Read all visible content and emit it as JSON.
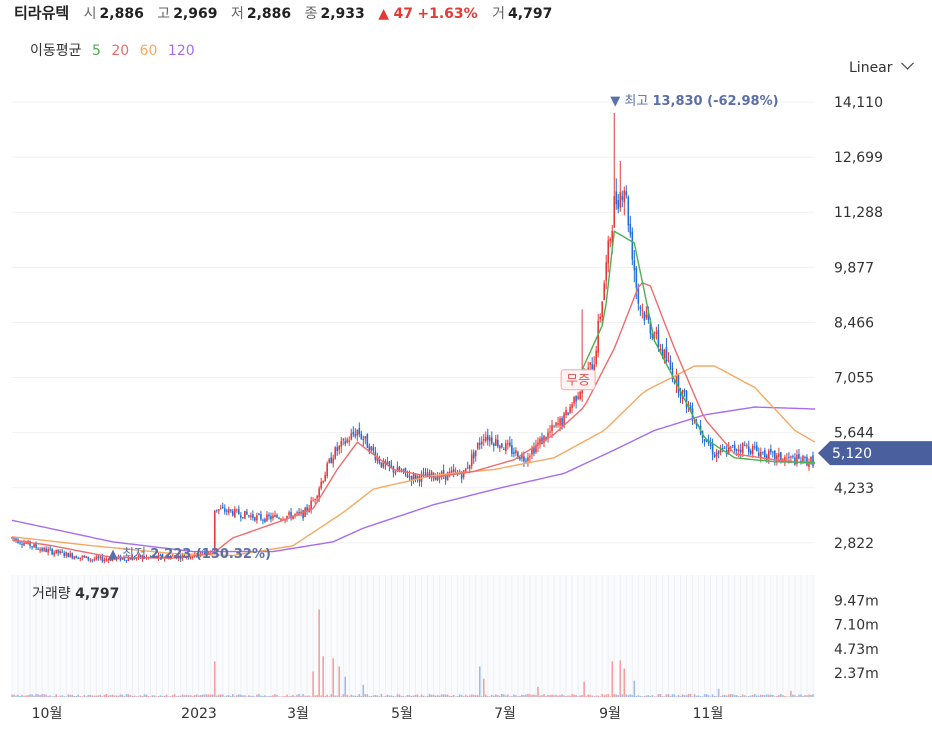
{
  "header": {
    "name": "티라유텍",
    "open_label": "시",
    "open": "2,886",
    "high_label": "고",
    "high": "2,969",
    "low_label": "저",
    "low": "2,886",
    "close_label": "종",
    "close": "2,933",
    "change": "47",
    "change_pct": "+1.63%",
    "volume_label": "거",
    "volume": "4,797"
  },
  "ma": {
    "label": "이동평균",
    "p5": "5",
    "p20": "20",
    "p60": "60",
    "p120": "120"
  },
  "scale_label": "Linear",
  "colors": {
    "up": "#e53935",
    "down": "#1e6fd9",
    "ma5": "#4caf50",
    "ma20": "#f06b6b",
    "ma60": "#f5a962",
    "ma120": "#a66cf0",
    "annotation": "#5b6fa8",
    "price_badge": "#4a5f9e"
  },
  "chart_data": {
    "type": "candlestick",
    "series_note": "",
    "price_axis": {
      "min": 2000,
      "max": 14800,
      "ticks": [
        "14,110",
        "12,699",
        "11,288",
        "9,877",
        "8,466",
        "7,055",
        "5,644",
        "4,233",
        "2,822"
      ]
    },
    "time_axis": {
      "ticks": [
        "10월",
        "2023",
        "3월",
        "5월",
        "7월",
        "9월",
        "11월"
      ]
    },
    "current_price": "5,120",
    "high_annotation": {
      "label": "최고",
      "value": "13,830",
      "pct": "(-62.98%)"
    },
    "low_annotation": {
      "label": "최저",
      "value": "2,223",
      "pct": "(130.32%)"
    },
    "event_annotation": "무증",
    "volume_label": "거래량",
    "volume_value": "4,797",
    "volume_axis": {
      "ticks": [
        "9.47m",
        "7.10m",
        "4.73m",
        "2.37m"
      ]
    },
    "anchors": [
      [
        0,
        2950
      ],
      [
        15,
        2650
      ],
      [
        40,
        2400
      ],
      [
        70,
        2450
      ],
      [
        90,
        2500
      ],
      [
        100,
        2600
      ],
      [
        101,
        3700
      ],
      [
        125,
        3450
      ],
      [
        145,
        3550
      ],
      [
        150,
        3900
      ],
      [
        160,
        5100
      ],
      [
        172,
        5700
      ],
      [
        185,
        4800
      ],
      [
        200,
        4500
      ],
      [
        225,
        4600
      ],
      [
        235,
        5600
      ],
      [
        255,
        5000
      ],
      [
        275,
        6000
      ],
      [
        290,
        7500
      ],
      [
        300,
        11500
      ],
      [
        305,
        12000
      ],
      [
        312,
        9000
      ],
      [
        325,
        7600
      ],
      [
        340,
        6000
      ],
      [
        350,
        5100
      ],
      [
        365,
        5300
      ],
      [
        380,
        5000
      ],
      [
        400,
        4900
      ]
    ],
    "ma5_anchors": [
      [
        280,
        6800
      ],
      [
        295,
        8500
      ],
      [
        300,
        10800
      ],
      [
        310,
        10500
      ],
      [
        320,
        8000
      ],
      [
        335,
        6500
      ],
      [
        345,
        5500
      ],
      [
        360,
        5000
      ],
      [
        380,
        4900
      ],
      [
        400,
        4880
      ]
    ],
    "ma20_anchors": [
      [
        0,
        2900
      ],
      [
        20,
        2750
      ],
      [
        50,
        2450
      ],
      [
        80,
        2430
      ],
      [
        100,
        2550
      ],
      [
        110,
        2950
      ],
      [
        135,
        3400
      ],
      [
        150,
        3700
      ],
      [
        162,
        4700
      ],
      [
        172,
        5400
      ],
      [
        190,
        4700
      ],
      [
        210,
        4500
      ],
      [
        230,
        4650
      ],
      [
        250,
        4950
      ],
      [
        270,
        5600
      ],
      [
        285,
        6300
      ],
      [
        300,
        7800
      ],
      [
        313,
        9500
      ],
      [
        318,
        9400
      ],
      [
        330,
        7800
      ],
      [
        345,
        6000
      ],
      [
        360,
        5100
      ],
      [
        380,
        4950
      ],
      [
        400,
        4850
      ]
    ],
    "ma60_anchors": [
      [
        0,
        2980
      ],
      [
        40,
        2750
      ],
      [
        80,
        2550
      ],
      [
        110,
        2500
      ],
      [
        140,
        2750
      ],
      [
        165,
        3600
      ],
      [
        180,
        4200
      ],
      [
        210,
        4550
      ],
      [
        240,
        4700
      ],
      [
        270,
        5000
      ],
      [
        295,
        5700
      ],
      [
        315,
        6700
      ],
      [
        340,
        7350
      ],
      [
        350,
        7350
      ],
      [
        370,
        6800
      ],
      [
        390,
        5700
      ],
      [
        400,
        5400
      ]
    ],
    "ma120_anchors": [
      [
        0,
        3400
      ],
      [
        50,
        2850
      ],
      [
        90,
        2600
      ],
      [
        130,
        2600
      ],
      [
        160,
        2850
      ],
      [
        175,
        3200
      ],
      [
        210,
        3800
      ],
      [
        245,
        4250
      ],
      [
        275,
        4600
      ],
      [
        300,
        5200
      ],
      [
        320,
        5700
      ],
      [
        345,
        6100
      ],
      [
        370,
        6300
      ],
      [
        400,
        6250
      ]
    ],
    "volume_spikes": [
      [
        101,
        3.5
      ],
      [
        150,
        2.5
      ],
      [
        153,
        8.6
      ],
      [
        155,
        4.0
      ],
      [
        160,
        3.8
      ],
      [
        163,
        3.0
      ],
      [
        166,
        2.0
      ],
      [
        175,
        1.2
      ],
      [
        233,
        3.0
      ],
      [
        235,
        1.8
      ],
      [
        262,
        1.0
      ],
      [
        285,
        1.5
      ],
      [
        299,
        3.5
      ],
      [
        303,
        3.6
      ],
      [
        305,
        2.8
      ],
      [
        310,
        1.6
      ],
      [
        352,
        0.8
      ],
      [
        388,
        0.6
      ]
    ]
  }
}
